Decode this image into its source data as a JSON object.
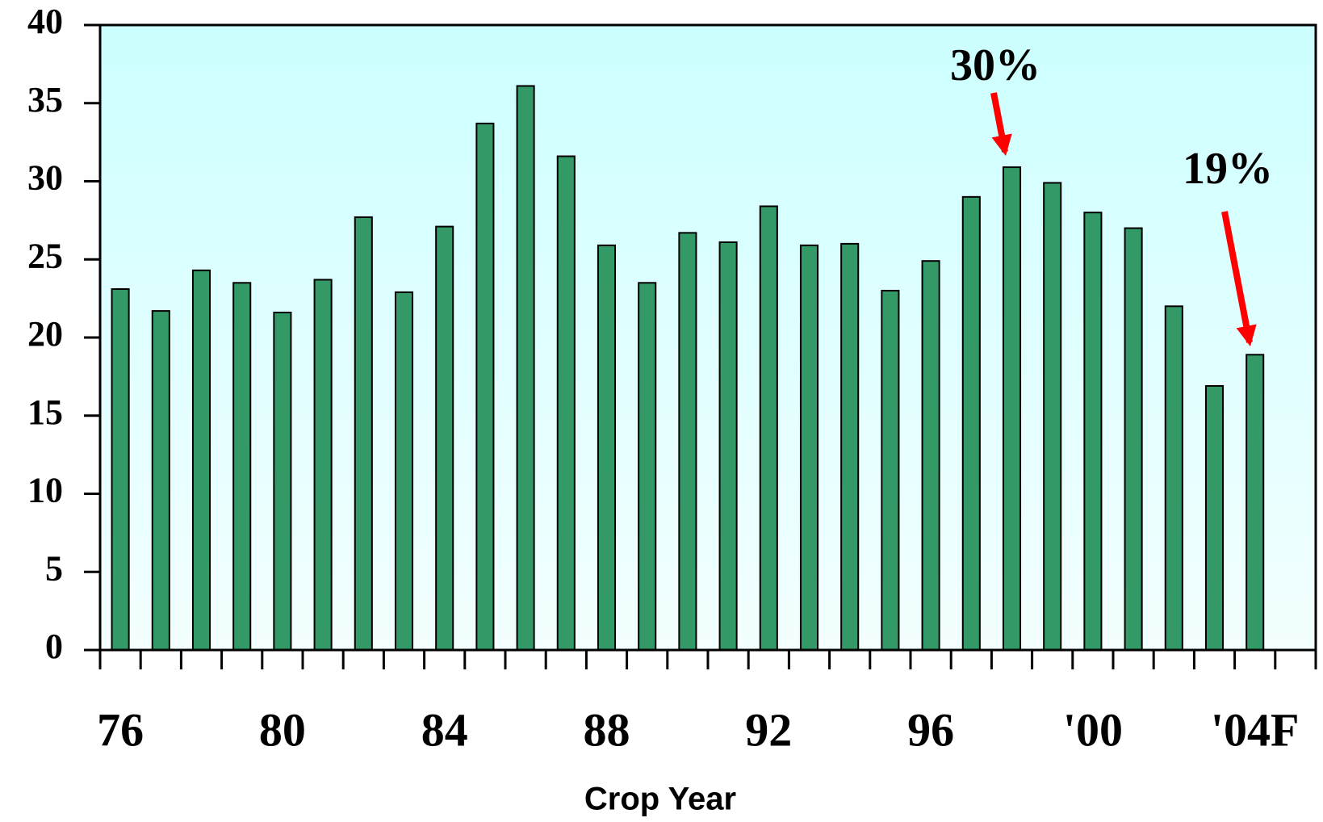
{
  "chart_data": {
    "type": "bar",
    "x_label": "Crop Year",
    "categories": [
      "76",
      null,
      null,
      null,
      "80",
      null,
      null,
      null,
      "84",
      null,
      null,
      null,
      "88",
      null,
      null,
      null,
      "92",
      null,
      null,
      null,
      "96",
      null,
      null,
      null,
      "'00",
      null,
      null,
      null,
      "'04F",
      null
    ],
    "values": [
      23.1,
      21.7,
      24.3,
      23.5,
      21.6,
      23.7,
      27.7,
      22.9,
      27.1,
      33.7,
      36.1,
      31.6,
      25.9,
      23.5,
      26.7,
      26.1,
      28.4,
      25.9,
      26.0,
      23.0,
      24.9,
      29.0,
      30.9,
      29.9,
      28.0,
      27.0,
      22.0,
      16.9,
      18.9,
      null
    ],
    "color": "#339966",
    "ylim": [
      0,
      40
    ],
    "yticks": [
      0,
      5,
      10,
      15,
      20,
      25,
      30,
      35,
      40
    ],
    "grid": false,
    "annotations": [
      {
        "text": "30%",
        "color": "#ff0000"
      },
      {
        "text": "19%",
        "color": "#ff0000"
      }
    ]
  }
}
